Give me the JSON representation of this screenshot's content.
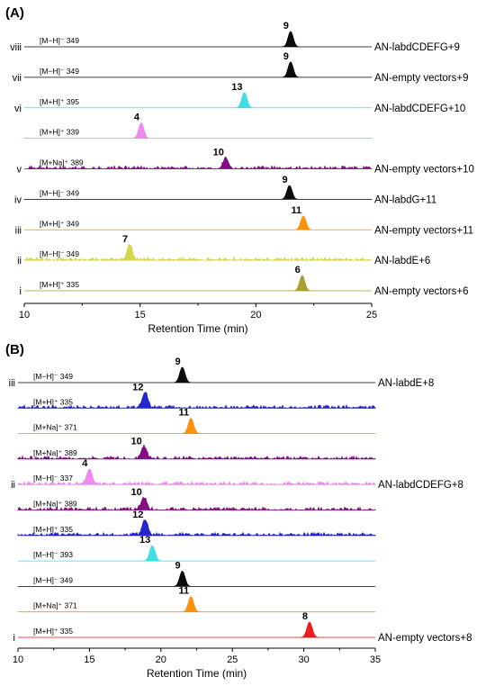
{
  "chart_data": [
    {
      "type": "line",
      "panel_label": "(A)",
      "xlabel": "Retention Time (min)",
      "xlim": [
        10,
        25
      ],
      "xticks": [
        10,
        15,
        20,
        25
      ],
      "series": [
        {
          "roman": "viii",
          "ion": "[M−H]⁻ 349",
          "color": "#000000",
          "sample": "AN-labdCDEFG+9",
          "peaks": [
            {
              "x": 21.5,
              "label": "9",
              "height": 1.0
            }
          ]
        },
        {
          "roman": "vii",
          "ion": "[M−H]⁻ 349",
          "color": "#000000",
          "sample": "AN-empty vectors+9",
          "peaks": [
            {
              "x": 21.5,
              "label": "9",
              "height": 1.0
            }
          ]
        },
        {
          "roman": "vi",
          "ion": "[M+H]⁺ 395",
          "color": "#33dde0",
          "sample": "AN-labdCDEFG+10",
          "peaks": [
            {
              "x": 19.5,
              "label": "13",
              "height": 1.0
            }
          ]
        },
        {
          "roman": "",
          "ion": "[M+H]⁺ 339",
          "color": "#ee82ee",
          "sample": "",
          "peaks": [
            {
              "x": 15.05,
              "label": "4",
              "height": 1.0
            }
          ]
        },
        {
          "roman": "v",
          "ion": "[M+Na]⁺ 389",
          "color": "#800080",
          "sample": "AN-empty vectors+10",
          "noisy": true,
          "peaks": [
            {
              "x": 18.7,
              "label": "10",
              "height": 0.7
            }
          ]
        },
        {
          "roman": "iv",
          "ion": "[M−H]⁻ 349",
          "color": "#000000",
          "sample": "AN-labdG+11",
          "peaks": [
            {
              "x": 21.45,
              "label": "9",
              "height": 0.9
            }
          ]
        },
        {
          "roman": "iii",
          "ion": "[M+H]⁺ 349",
          "color": "#ff8c00",
          "sample": "AN-empty vectors+11",
          "peaks": [
            {
              "x": 22.05,
              "label": "11",
              "height": 0.9
            }
          ]
        },
        {
          "roman": "ii",
          "ion": "[M−H]⁻ 349",
          "color": "#d4d440",
          "sample": "AN-labdE+6",
          "noisy": true,
          "peaks": [
            {
              "x": 14.55,
              "label": "7",
              "height": 1.0
            }
          ]
        },
        {
          "roman": "i",
          "ion": "[M+H]⁺ 335",
          "color": "#a39a2a",
          "sample": "AN-empty vectors+6",
          "peaks": [
            {
              "x": 22.0,
              "label": "6",
              "height": 1.0
            }
          ]
        }
      ]
    },
    {
      "type": "line",
      "panel_label": "(B)",
      "xlabel": "Retention Time (min)",
      "xlim": [
        10,
        35
      ],
      "xticks": [
        10,
        15,
        20,
        25,
        30,
        35
      ],
      "series": [
        {
          "roman": "iii",
          "ion": "[M−H]⁻ 349",
          "color": "#000000",
          "sample": "AN-labdE+8",
          "peaks": [
            {
              "x": 21.5,
              "label": "9",
              "height": 1.0
            }
          ]
        },
        {
          "roman": "",
          "ion": "[M+H]⁺ 335",
          "color": "#1a1acc",
          "sample": "",
          "noisy": true,
          "peaks": [
            {
              "x": 18.9,
              "label": "12",
              "height": 1.0
            }
          ]
        },
        {
          "roman": "",
          "ion": "[M+Na]⁺ 371",
          "color": "#ff8c00",
          "sample": "",
          "peaks": [
            {
              "x": 22.1,
              "label": "11",
              "height": 1.0
            }
          ]
        },
        {
          "roman": "",
          "ion": "[M+Na]⁺ 389",
          "color": "#800080",
          "sample": "",
          "noisy": true,
          "peaks": [
            {
              "x": 18.8,
              "label": "10",
              "height": 0.8
            }
          ]
        },
        {
          "roman": "ii",
          "ion": "[M−H]⁻ 337",
          "color": "#ee82ee",
          "sample": "AN-labdCDEFG+8",
          "noisy": true,
          "peaks": [
            {
              "x": 15.0,
              "label": "4",
              "height": 1.0
            }
          ]
        },
        {
          "roman": "",
          "ion": "[M+Na]⁺ 389",
          "color": "#800080",
          "sample": "",
          "noisy": true,
          "peaks": [
            {
              "x": 18.8,
              "label": "10",
              "height": 0.8
            }
          ]
        },
        {
          "roman": "",
          "ion": "[M+H]⁺ 335",
          "color": "#1a1acc",
          "sample": "",
          "noisy": true,
          "peaks": [
            {
              "x": 18.9,
              "label": "12",
              "height": 1.0
            }
          ]
        },
        {
          "roman": "",
          "ion": "[M−H]⁻ 393",
          "color": "#33dde0",
          "sample": "",
          "peaks": [
            {
              "x": 19.4,
              "label": "13",
              "height": 1.0
            }
          ]
        },
        {
          "roman": "",
          "ion": "[M−H]⁻ 349",
          "color": "#000000",
          "sample": "",
          "peaks": [
            {
              "x": 21.5,
              "label": "9",
              "height": 1.0
            }
          ]
        },
        {
          "roman": "",
          "ion": "[M+Na]⁺ 371",
          "color": "#ff8c00",
          "sample": "",
          "peaks": [
            {
              "x": 22.1,
              "label": "11",
              "height": 1.0
            }
          ]
        },
        {
          "roman": "i",
          "ion": "[M+H]⁺ 335",
          "color": "#ee1111",
          "sample": "AN-empty vectors+8",
          "peaks": [
            {
              "x": 30.4,
              "label": "8",
              "height": 1.0
            }
          ]
        }
      ]
    }
  ]
}
